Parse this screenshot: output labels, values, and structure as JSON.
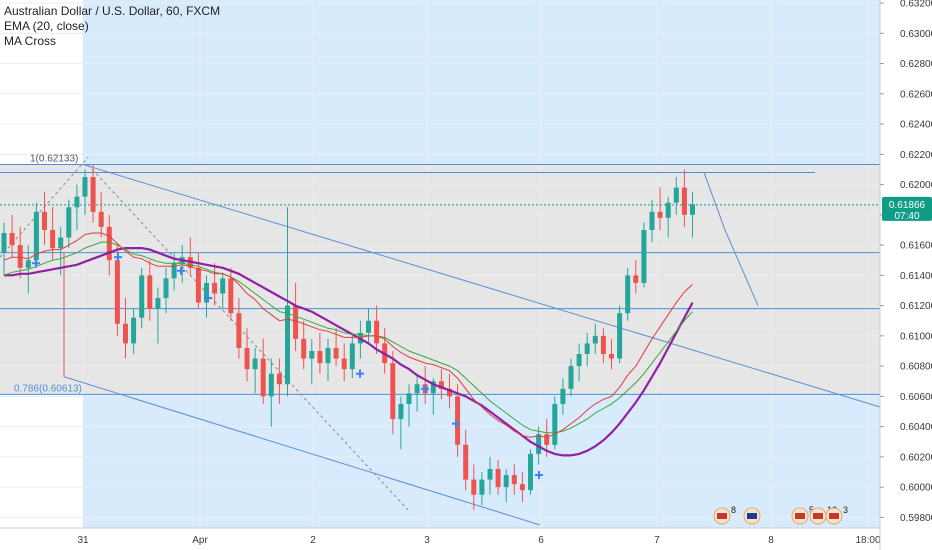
{
  "legend": {
    "symbol_title": "Australian Dollar / U.S. Dollar, 60, FXCM",
    "ema_label": "EMA (20, close)",
    "ma_cross_label": "MA Cross"
  },
  "colors": {
    "up": "#26a69a",
    "down": "#ef5350",
    "ema": "#e23b3b",
    "ma_fast": "#3aa43a",
    "ma_slow": "#8f1fa3",
    "zone": "#e6e6e6",
    "highlight": "#d8ebfd",
    "fib_line": "#4a90d9",
    "channel": "#5b8fd4",
    "price_tag": "#0f9d86"
  },
  "price_tag": {
    "price": "0.61866",
    "countdown": "07:40"
  },
  "fib": {
    "level_1_label": "1(0.62133)",
    "level_0786_label": "0.786(0.60613)",
    "level_1": 0.62133,
    "level_0786": 0.60613
  },
  "events": [
    {
      "name": "us-flag-icon",
      "count": "8"
    },
    {
      "name": "au-flag-icon",
      "count": ""
    },
    {
      "name": "us-flag-icon",
      "count": "5"
    },
    {
      "name": "us-flag-icon",
      "count": "12"
    },
    {
      "name": "us-flag-icon",
      "count": "3"
    }
  ],
  "chart_data": {
    "type": "candlestick",
    "y_axis_ticks": [
      "0.63200",
      "0.63000",
      "0.62800",
      "0.62600",
      "0.62400",
      "0.62200",
      "0.62000",
      "0.61800",
      "0.61600",
      "0.61400",
      "0.61200",
      "0.61000",
      "0.60800",
      "0.60600",
      "0.60400",
      "0.60200",
      "0.60000",
      "0.59800"
    ],
    "x_axis_ticks": [
      "31",
      "Apr",
      "2",
      "3",
      "6",
      "7",
      "8",
      "18:00"
    ],
    "ylim": [
      0.5973,
      0.6322
    ],
    "horizontal_levels": [
      0.62133,
      0.6208,
      0.61866,
      0.6155,
      0.6118,
      0.60613
    ],
    "candles": [
      [
        0.6155,
        0.6175,
        0.614,
        0.6168
      ],
      [
        0.6168,
        0.618,
        0.6152,
        0.616
      ],
      [
        0.616,
        0.6172,
        0.6138,
        0.6145
      ],
      [
        0.6145,
        0.616,
        0.6128,
        0.615
      ],
      [
        0.615,
        0.6188,
        0.6145,
        0.6182
      ],
      [
        0.6182,
        0.6195,
        0.616,
        0.617
      ],
      [
        0.617,
        0.6185,
        0.615,
        0.6158
      ],
      [
        0.6158,
        0.6172,
        0.614,
        0.6165
      ],
      [
        0.6165,
        0.619,
        0.6158,
        0.6185
      ],
      [
        0.6185,
        0.62,
        0.617,
        0.6192
      ],
      [
        0.6192,
        0.621,
        0.618,
        0.6205
      ],
      [
        0.6205,
        0.6213,
        0.6175,
        0.6182
      ],
      [
        0.6182,
        0.6195,
        0.6165,
        0.6172
      ],
      [
        0.6172,
        0.618,
        0.614,
        0.615
      ],
      [
        0.615,
        0.616,
        0.61,
        0.6108
      ],
      [
        0.6108,
        0.6125,
        0.6085,
        0.6095
      ],
      [
        0.6095,
        0.6118,
        0.6088,
        0.6112
      ],
      [
        0.6112,
        0.6145,
        0.6105,
        0.614
      ],
      [
        0.614,
        0.615,
        0.611,
        0.6118
      ],
      [
        0.6118,
        0.6132,
        0.6095,
        0.6125
      ],
      [
        0.6125,
        0.6145,
        0.6115,
        0.6138
      ],
      [
        0.6138,
        0.6155,
        0.613,
        0.6148
      ],
      [
        0.6148,
        0.616,
        0.6135,
        0.6152
      ],
      [
        0.6152,
        0.6165,
        0.614,
        0.6145
      ],
      [
        0.6145,
        0.6155,
        0.6118,
        0.6122
      ],
      [
        0.6122,
        0.614,
        0.6112,
        0.6135
      ],
      [
        0.6135,
        0.6148,
        0.612,
        0.6128
      ],
      [
        0.6128,
        0.6142,
        0.6118,
        0.6138
      ],
      [
        0.6138,
        0.6145,
        0.611,
        0.6115
      ],
      [
        0.6115,
        0.6125,
        0.6085,
        0.6092
      ],
      [
        0.6092,
        0.6105,
        0.607,
        0.6078
      ],
      [
        0.6078,
        0.6092,
        0.6062,
        0.6085
      ],
      [
        0.6085,
        0.6098,
        0.6055,
        0.606
      ],
      [
        0.606,
        0.6085,
        0.604,
        0.6075
      ],
      [
        0.6075,
        0.6085,
        0.6055,
        0.6068
      ],
      [
        0.6068,
        0.6185,
        0.606,
        0.612
      ],
      [
        0.612,
        0.6135,
        0.609,
        0.6098
      ],
      [
        0.6098,
        0.611,
        0.6078,
        0.6085
      ],
      [
        0.6085,
        0.6098,
        0.6068,
        0.609
      ],
      [
        0.609,
        0.6102,
        0.6075,
        0.6082
      ],
      [
        0.6082,
        0.6098,
        0.607,
        0.6092
      ],
      [
        0.6092,
        0.6105,
        0.608,
        0.6085
      ],
      [
        0.6085,
        0.6095,
        0.607,
        0.6078
      ],
      [
        0.6078,
        0.61,
        0.6072,
        0.6095
      ],
      [
        0.6095,
        0.611,
        0.6085,
        0.6102
      ],
      [
        0.6102,
        0.6118,
        0.6095,
        0.611
      ],
      [
        0.611,
        0.612,
        0.6088,
        0.6095
      ],
      [
        0.6095,
        0.6105,
        0.6075,
        0.6082
      ],
      [
        0.6082,
        0.609,
        0.6035,
        0.6045
      ],
      [
        0.6045,
        0.606,
        0.6025,
        0.6055
      ],
      [
        0.6055,
        0.6068,
        0.604,
        0.6062
      ],
      [
        0.6062,
        0.6075,
        0.605,
        0.6068
      ],
      [
        0.6068,
        0.608,
        0.6055,
        0.6062
      ],
      [
        0.6062,
        0.6072,
        0.6048,
        0.607
      ],
      [
        0.607,
        0.6078,
        0.6058,
        0.6065
      ],
      [
        0.6065,
        0.6075,
        0.6052,
        0.606
      ],
      [
        0.606,
        0.6068,
        0.602,
        0.6028
      ],
      [
        0.6028,
        0.6038,
        0.5998,
        0.6005
      ],
      [
        0.6005,
        0.6015,
        0.5985,
        0.5995
      ],
      [
        0.5995,
        0.601,
        0.5988,
        0.6005
      ],
      [
        0.6005,
        0.602,
        0.5995,
        0.6012
      ],
      [
        0.6012,
        0.6018,
        0.5995,
        0.6
      ],
      [
        0.6,
        0.6012,
        0.599,
        0.6008
      ],
      [
        0.6008,
        0.6015,
        0.5995,
        0.6002
      ],
      [
        0.6002,
        0.601,
        0.599,
        0.5998
      ],
      [
        0.5998,
        0.6025,
        0.5995,
        0.6022
      ],
      [
        0.6022,
        0.604,
        0.6015,
        0.6035
      ],
      [
        0.6035,
        0.6045,
        0.602,
        0.6028
      ],
      [
        0.6028,
        0.606,
        0.6025,
        0.6055
      ],
      [
        0.6055,
        0.6072,
        0.6048,
        0.6065
      ],
      [
        0.6065,
        0.6085,
        0.606,
        0.608
      ],
      [
        0.608,
        0.6095,
        0.607,
        0.6088
      ],
      [
        0.6088,
        0.6102,
        0.608,
        0.6095
      ],
      [
        0.6095,
        0.6108,
        0.6088,
        0.61
      ],
      [
        0.61,
        0.6105,
        0.6082,
        0.6088
      ],
      [
        0.6088,
        0.6098,
        0.6078,
        0.6085
      ],
      [
        0.6085,
        0.612,
        0.6082,
        0.6115
      ],
      [
        0.6115,
        0.6145,
        0.611,
        0.614
      ],
      [
        0.614,
        0.615,
        0.6128,
        0.6135
      ],
      [
        0.6135,
        0.6175,
        0.6132,
        0.617
      ],
      [
        0.617,
        0.619,
        0.6162,
        0.6182
      ],
      [
        0.6182,
        0.6198,
        0.617,
        0.6178
      ],
      [
        0.6178,
        0.6192,
        0.6165,
        0.6188
      ],
      [
        0.6188,
        0.6205,
        0.618,
        0.6198
      ],
      [
        0.6198,
        0.621,
        0.6172,
        0.618
      ],
      [
        0.618,
        0.6195,
        0.6165,
        0.6187
      ]
    ],
    "ema_20": [
      0.615,
      0.6152,
      0.6152,
      0.6151,
      0.6154,
      0.6156,
      0.6157,
      0.6157,
      0.616,
      0.6163,
      0.6167,
      0.6168,
      0.6168,
      0.6166,
      0.6161,
      0.6156,
      0.6152,
      0.6151,
      0.6148,
      0.6146,
      0.6146,
      0.6146,
      0.6147,
      0.6146,
      0.6144,
      0.6143,
      0.6141,
      0.6141,
      0.6139,
      0.6134,
      0.6128,
      0.6124,
      0.6118,
      0.6114,
      0.611,
      0.6111,
      0.611,
      0.6108,
      0.6106,
      0.6104,
      0.6103,
      0.6101,
      0.6099,
      0.6099,
      0.6099,
      0.61,
      0.61,
      0.6098,
      0.6093,
      0.6089,
      0.6086,
      0.6084,
      0.6082,
      0.6081,
      0.6079,
      0.6077,
      0.6072,
      0.6065,
      0.6058,
      0.6053,
      0.6048,
      0.6044,
      0.6041,
      0.6037,
      0.6034,
      0.6033,
      0.6034,
      0.6033,
      0.6035,
      0.6038,
      0.6042,
      0.6046,
      0.6051,
      0.6055,
      0.6058,
      0.606,
      0.6066,
      0.6074,
      0.608,
      0.6089,
      0.6098,
      0.6106,
      0.6114,
      0.6122,
      0.6129,
      0.6134
    ],
    "ma_fast": [
      0.614,
      0.6142,
      0.6143,
      0.6144,
      0.6146,
      0.6148,
      0.615,
      0.6151,
      0.6153,
      0.6155,
      0.6158,
      0.616,
      0.6162,
      0.6162,
      0.616,
      0.6157,
      0.6154,
      0.6153,
      0.6151,
      0.6149,
      0.6148,
      0.6148,
      0.6148,
      0.6147,
      0.6146,
      0.6144,
      0.6142,
      0.6141,
      0.6139,
      0.6136,
      0.6132,
      0.6128,
      0.6124,
      0.612,
      0.6116,
      0.6115,
      0.6113,
      0.6111,
      0.6109,
      0.6107,
      0.6105,
      0.6104,
      0.6102,
      0.6101,
      0.6101,
      0.61,
      0.61,
      0.6099,
      0.6096,
      0.6093,
      0.609,
      0.6088,
      0.6086,
      0.6084,
      0.6082,
      0.608,
      0.6077,
      0.6072,
      0.6067,
      0.6062,
      0.6057,
      0.6053,
      0.6049,
      0.6045,
      0.6041,
      0.6038,
      0.6037,
      0.6036,
      0.6036,
      0.6037,
      0.6039,
      0.6042,
      0.6045,
      0.6049,
      0.6052,
      0.6055,
      0.6059,
      0.6064,
      0.6069,
      0.6075,
      0.6082,
      0.6089,
      0.6096,
      0.6103,
      0.611,
      0.6116
    ],
    "ma_slow": [
      0.614,
      0.614,
      0.6141,
      0.6141,
      0.6142,
      0.6143,
      0.6144,
      0.6145,
      0.6146,
      0.6147,
      0.6149,
      0.6151,
      0.6153,
      0.6155,
      0.6157,
      0.6158,
      0.6158,
      0.6158,
      0.6157,
      0.6155,
      0.6153,
      0.6151,
      0.615,
      0.6149,
      0.6148,
      0.6147,
      0.6146,
      0.6145,
      0.6143,
      0.6141,
      0.6138,
      0.6135,
      0.6132,
      0.6129,
      0.6126,
      0.6123,
      0.612,
      0.6118,
      0.6116,
      0.6113,
      0.611,
      0.6107,
      0.6104,
      0.6101,
      0.6098,
      0.6095,
      0.6091,
      0.6088,
      0.6085,
      0.6081,
      0.6078,
      0.6074,
      0.6071,
      0.6068,
      0.6066,
      0.6064,
      0.6062,
      0.606,
      0.6057,
      0.6054,
      0.605,
      0.6046,
      0.6042,
      0.6038,
      0.6034,
      0.603,
      0.6027,
      0.6024,
      0.6022,
      0.6021,
      0.6021,
      0.6022,
      0.6024,
      0.6027,
      0.6031,
      0.6036,
      0.6042,
      0.6049,
      0.6056,
      0.6064,
      0.6073,
      0.6082,
      0.6092,
      0.6102,
      0.6112,
      0.6122
    ]
  }
}
